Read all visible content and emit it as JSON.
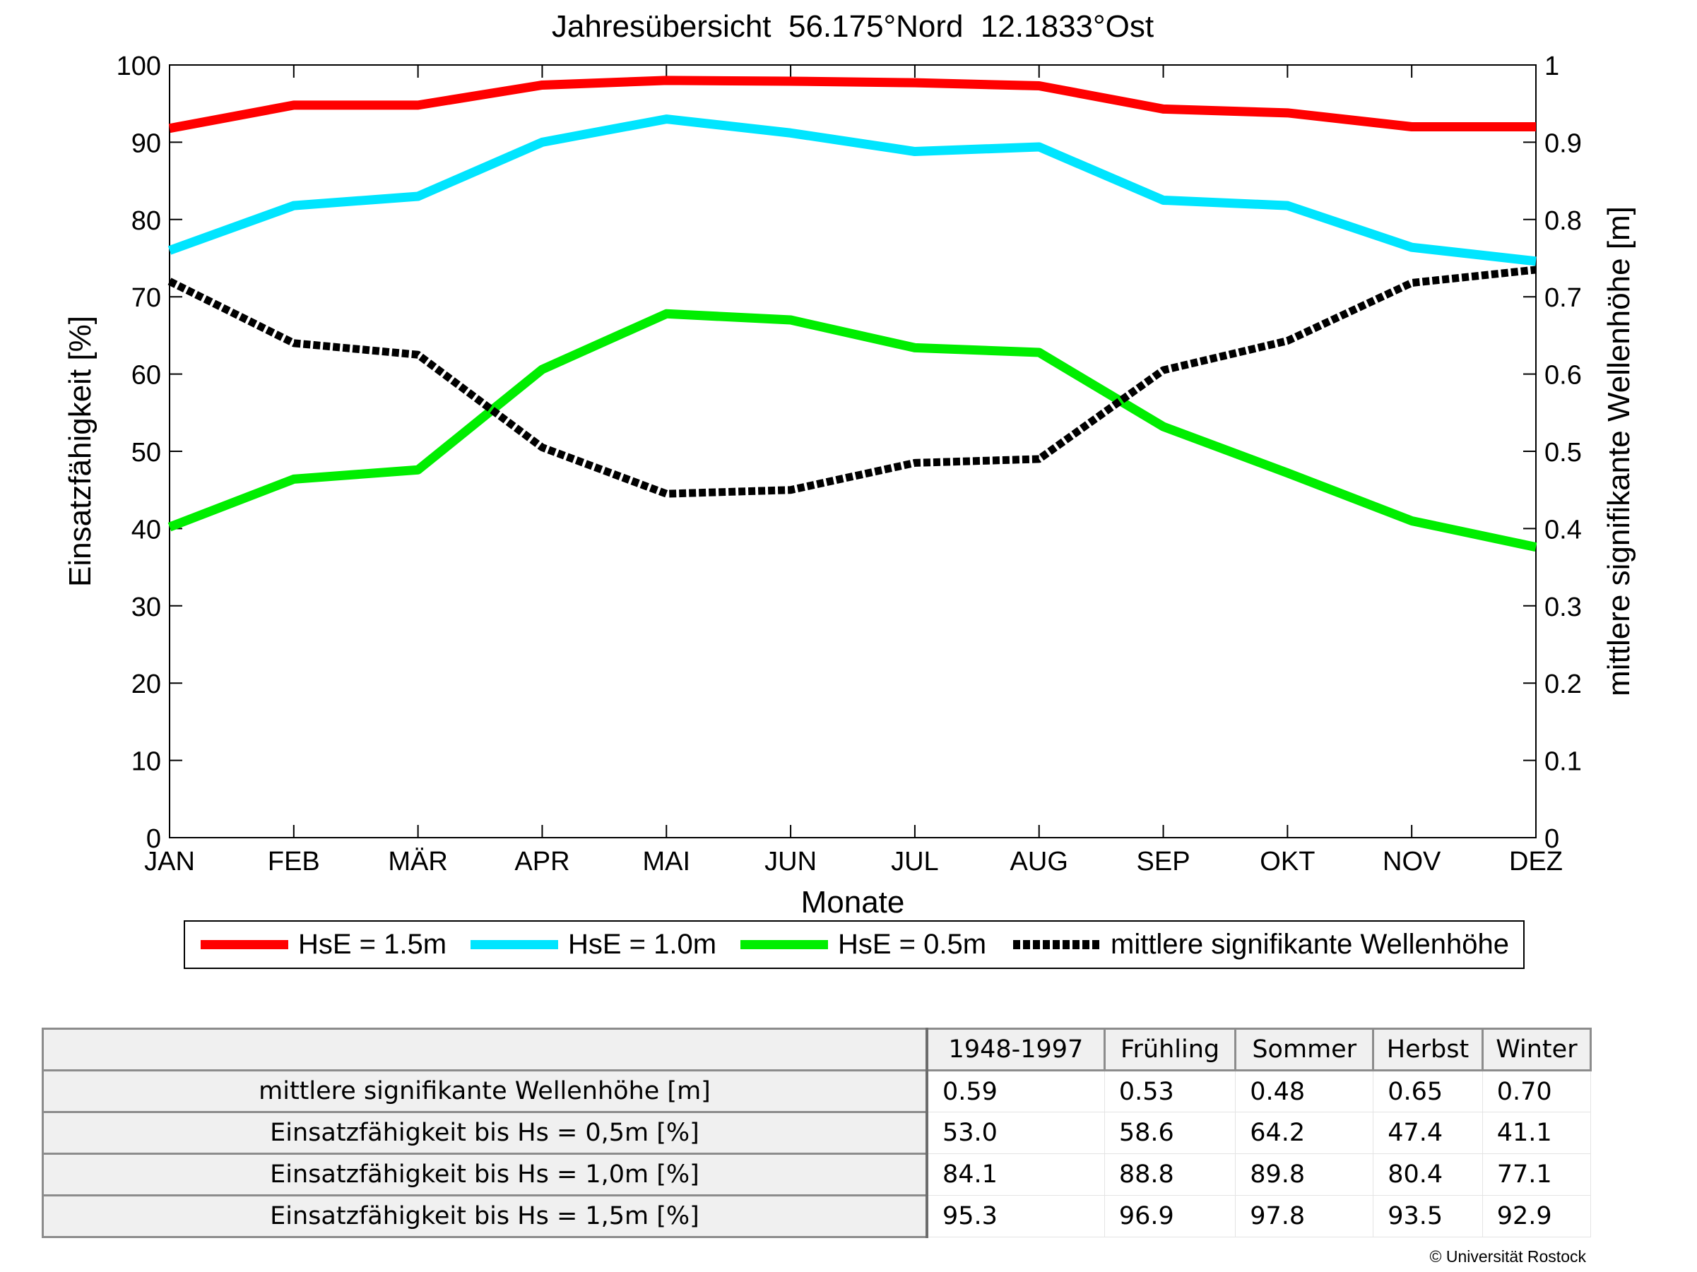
{
  "chart_data": {
    "type": "line",
    "title": "Jahresübersicht  56.175°Nord  12.1833°Ost",
    "xlabel": "Monate",
    "ylabel": "Einsatzfähigkeit [%]",
    "y2label": "mittlere signifikante Wellenhöhe [m]",
    "categories": [
      "JAN",
      "FEB",
      "MÄR",
      "APR",
      "MAI",
      "JUN",
      "JUL",
      "AUG",
      "SEP",
      "OKT",
      "NOV",
      "DEZ"
    ],
    "ylim": [
      0,
      100
    ],
    "y2lim": [
      0,
      1
    ],
    "yticks": [
      "0",
      "10",
      "20",
      "30",
      "40",
      "50",
      "60",
      "70",
      "80",
      "90",
      "100"
    ],
    "y2ticks": [
      "0",
      "0.1",
      "0.2",
      "0.3",
      "0.4",
      "0.5",
      "0.6",
      "0.7",
      "0.8",
      "0.9",
      "1"
    ],
    "grid": false,
    "legend_position": "bottom",
    "series": [
      {
        "name": "HsE = 1.5m",
        "axis": "left",
        "color": "#ff0000",
        "style": "solid",
        "values": [
          91.8,
          94.8,
          94.8,
          97.4,
          98.0,
          97.9,
          97.7,
          97.3,
          94.3,
          93.8,
          92.0,
          92.0
        ]
      },
      {
        "name": "HsE = 1.0m",
        "axis": "left",
        "color": "#00e5ff",
        "style": "solid",
        "values": [
          76.0,
          81.8,
          83.0,
          90.0,
          93.0,
          91.2,
          88.8,
          89.4,
          82.5,
          81.8,
          76.4,
          74.6
        ]
      },
      {
        "name": "HsE = 0.5m",
        "axis": "left",
        "color": "#00ee00",
        "style": "solid",
        "values": [
          40.2,
          46.4,
          47.6,
          60.6,
          67.8,
          67.0,
          63.4,
          62.8,
          53.2,
          47.2,
          41.0,
          37.6
        ]
      },
      {
        "name": "mittlere signifikante Wellenhöhe",
        "axis": "right",
        "color": "#000000",
        "style": "dotted",
        "values": [
          0.72,
          0.64,
          0.625,
          0.505,
          0.445,
          0.45,
          0.485,
          0.49,
          0.605,
          0.643,
          0.718,
          0.735
        ]
      }
    ]
  },
  "table": {
    "headers": [
      "1948-1997",
      "Frühling",
      "Sommer",
      "Herbst",
      "Winter"
    ],
    "rows": [
      {
        "label": "mittlere signifikante Wellenhöhe [m]",
        "values": [
          "0.59",
          "0.53",
          "0.48",
          "0.65",
          "0.70"
        ]
      },
      {
        "label": "Einsatzfähigkeit bis Hs = 0,5m [%]",
        "values": [
          "53.0",
          "58.6",
          "64.2",
          "47.4",
          "41.1"
        ]
      },
      {
        "label": "Einsatzfähigkeit bis Hs = 1,0m [%]",
        "values": [
          "84.1",
          "88.8",
          "89.8",
          "80.4",
          "77.1"
        ]
      },
      {
        "label": "Einsatzfähigkeit bis Hs = 1,5m [%]",
        "values": [
          "95.3",
          "96.9",
          "97.8",
          "93.5",
          "92.9"
        ]
      }
    ]
  },
  "copyright": "© Universität Rostock"
}
